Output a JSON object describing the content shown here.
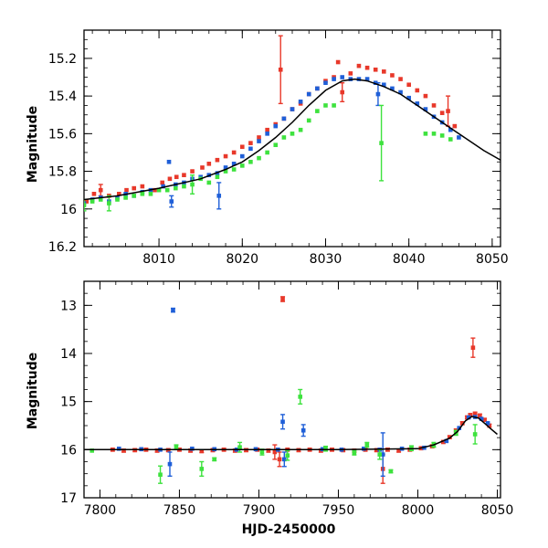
{
  "chart_data": [
    {
      "type": "scatter",
      "panel": "top",
      "ylabel": "Magnitude",
      "xlabel": "",
      "xlim": [
        8001,
        8051
      ],
      "ylim": [
        16.2,
        15.05
      ],
      "y_inverted": true,
      "x_ticks": [
        8010,
        8020,
        8030,
        8040,
        8050
      ],
      "x_tick_labels": [
        "8010",
        "8020",
        "8030",
        "8040",
        "8050"
      ],
      "y_ticks": [
        15.2,
        15.4,
        15.6,
        15.8,
        16.0,
        16.2
      ],
      "y_tick_labels": [
        "15.2",
        "15.4",
        "15.6",
        "15.8",
        "16",
        "16.2"
      ],
      "grid": false,
      "legend": "none",
      "model_curve": {
        "color": "#000000",
        "x": [
          8001,
          8005,
          8010,
          8015,
          8018,
          8020,
          8022,
          8024,
          8026,
          8028,
          8030,
          8032,
          8033.5,
          8035,
          8037,
          8039,
          8041,
          8043,
          8045,
          8047,
          8049,
          8051
        ],
        "y": [
          15.95,
          15.93,
          15.89,
          15.84,
          15.79,
          15.75,
          15.69,
          15.62,
          15.54,
          15.45,
          15.37,
          15.32,
          15.31,
          15.32,
          15.35,
          15.39,
          15.45,
          15.51,
          15.57,
          15.63,
          15.69,
          15.74
        ]
      },
      "series": [
        {
          "color": "#e8382a",
          "x": [
            8001.3,
            8002.2,
            8003,
            8004,
            8005.2,
            8006.1,
            8007,
            8008,
            8009.5,
            8010.4,
            8011.3,
            8012.1,
            8013,
            8014,
            8015.2,
            8016,
            8017,
            8018,
            8019,
            8020,
            8021,
            8022,
            8023,
            8024,
            8024.6,
            8025,
            8026,
            8027,
            8028,
            8029,
            8030,
            8031,
            8031.5,
            8032,
            8033,
            8034,
            8035,
            8036,
            8037,
            8038,
            8039,
            8040,
            8041,
            8042,
            8043,
            8044,
            8044.7,
            8045.5
          ],
          "y": [
            15.96,
            15.92,
            15.9,
            15.93,
            15.92,
            15.9,
            15.89,
            15.88,
            15.9,
            15.86,
            15.84,
            15.83,
            15.82,
            15.8,
            15.78,
            15.76,
            15.74,
            15.72,
            15.7,
            15.67,
            15.65,
            15.62,
            15.58,
            15.55,
            15.26,
            15.52,
            15.47,
            15.44,
            15.39,
            15.36,
            15.32,
            15.3,
            15.22,
            15.38,
            15.28,
            15.24,
            15.25,
            15.26,
            15.27,
            15.29,
            15.31,
            15.34,
            15.37,
            15.4,
            15.45,
            15.49,
            15.48,
            15.56
          ],
          "yerr": [
            0.02,
            0.02,
            0.03,
            0.02,
            0.02,
            0.02,
            0.02,
            0.02,
            0.02,
            0.02,
            0.02,
            0.02,
            0.02,
            0.02,
            0.02,
            0.02,
            0.02,
            0.02,
            0.02,
            0.02,
            0.02,
            0.02,
            0.02,
            0.02,
            0.18,
            0.02,
            0.02,
            0.02,
            0.02,
            0.02,
            0.02,
            0.02,
            0.02,
            0.05,
            0.02,
            0.02,
            0.02,
            0.02,
            0.02,
            0.02,
            0.02,
            0.02,
            0.02,
            0.02,
            0.02,
            0.02,
            0.08,
            0.02
          ]
        },
        {
          "color": "#1f5fd8",
          "x": [
            8001,
            8002,
            8003,
            8004,
            8005,
            8006,
            8007,
            8008,
            8009,
            8010.5,
            8011.2,
            8011.5,
            8012,
            8013,
            8014,
            8015,
            8016,
            8017,
            8017.2,
            8018,
            8019,
            8020,
            8021,
            8022,
            8023,
            8024,
            8025,
            8026,
            8027,
            8028,
            8029,
            8030,
            8031,
            8032,
            8033,
            8034,
            8035,
            8036,
            8036.3,
            8037,
            8038,
            8039,
            8040,
            8041,
            8042,
            8043,
            8044,
            8045,
            8046
          ],
          "y": [
            15.97,
            15.95,
            15.94,
            15.96,
            15.94,
            15.92,
            15.93,
            15.91,
            15.9,
            15.88,
            15.75,
            15.96,
            15.87,
            15.86,
            15.84,
            15.83,
            15.82,
            15.81,
            15.93,
            15.78,
            15.76,
            15.72,
            15.68,
            15.64,
            15.6,
            15.56,
            15.52,
            15.47,
            15.43,
            15.39,
            15.36,
            15.33,
            15.31,
            15.3,
            15.31,
            15.31,
            15.31,
            15.33,
            15.39,
            15.34,
            15.36,
            15.38,
            15.41,
            15.44,
            15.47,
            15.51,
            15.54,
            15.58,
            15.62
          ],
          "yerr": [
            0.02,
            0.02,
            0.02,
            0.02,
            0.02,
            0.02,
            0.02,
            0.02,
            0.02,
            0.02,
            0.02,
            0.03,
            0.02,
            0.02,
            0.02,
            0.02,
            0.02,
            0.02,
            0.07,
            0.02,
            0.02,
            0.02,
            0.02,
            0.02,
            0.02,
            0.02,
            0.02,
            0.02,
            0.02,
            0.02,
            0.02,
            0.02,
            0.02,
            0.02,
            0.02,
            0.02,
            0.02,
            0.02,
            0.06,
            0.02,
            0.02,
            0.02,
            0.02,
            0.02,
            0.02,
            0.02,
            0.02,
            0.02,
            0.02
          ]
        },
        {
          "color": "#3ee23e",
          "x": [
            8001,
            8002,
            8003,
            8004,
            8005,
            8006,
            8007,
            8008,
            8009,
            8010,
            8011,
            8012,
            8013,
            8014,
            8015,
            8016,
            8017,
            8018,
            8019,
            8020,
            8021,
            8022,
            8023,
            8024,
            8025,
            8026,
            8027,
            8028,
            8029,
            8030,
            8031,
            8036.7,
            8042,
            8043,
            8044,
            8045
          ],
          "y": [
            15.98,
            15.96,
            15.95,
            15.97,
            15.95,
            15.94,
            15.93,
            15.92,
            15.92,
            15.9,
            15.9,
            15.89,
            15.88,
            15.87,
            15.84,
            15.86,
            15.83,
            15.8,
            15.79,
            15.77,
            15.75,
            15.73,
            15.7,
            15.66,
            15.62,
            15.6,
            15.58,
            15.53,
            15.48,
            15.45,
            15.45,
            15.65,
            15.6,
            15.6,
            15.61,
            15.63
          ],
          "yerr": [
            0.03,
            0.02,
            0.02,
            0.04,
            0.02,
            0.02,
            0.02,
            0.02,
            0.02,
            0.02,
            0.02,
            0.02,
            0.02,
            0.05,
            0.02,
            0.02,
            0.02,
            0.02,
            0.02,
            0.02,
            0.02,
            0.02,
            0.02,
            0.02,
            0.02,
            0.02,
            0.02,
            0.02,
            0.02,
            0.02,
            0.02,
            0.2,
            0.02,
            0.02,
            0.02,
            0.02
          ]
        }
      ]
    },
    {
      "type": "scatter",
      "panel": "bottom",
      "ylabel": "Magnitude",
      "xlabel": "HJD-2450000",
      "xlim": [
        7790,
        8052
      ],
      "ylim": [
        17,
        12.5
      ],
      "y_inverted": true,
      "x_ticks": [
        7800,
        7850,
        7900,
        7950,
        8000,
        8050
      ],
      "x_tick_labels": [
        "7800",
        "7850",
        "7900",
        "7950",
        "8000",
        "8050"
      ],
      "y_ticks": [
        13,
        14,
        15,
        16,
        17
      ],
      "y_tick_labels": [
        "13",
        "14",
        "15",
        "16",
        "17"
      ],
      "grid": false,
      "legend": "none",
      "model_curve": {
        "color": "#000000",
        "x": [
          7790,
          7850,
          7900,
          7950,
          8000,
          8010,
          8020,
          8025,
          8030,
          8034,
          8038,
          8042,
          8046,
          8050
        ],
        "y": [
          16.0,
          16.0,
          16.0,
          16.0,
          15.98,
          15.9,
          15.76,
          15.62,
          15.4,
          15.31,
          15.34,
          15.45,
          15.57,
          15.68
        ]
      },
      "series": [
        {
          "color": "#e8382a",
          "x": [
            7808,
            7815,
            7822,
            7829,
            7836,
            7843,
            7850,
            7857,
            7864,
            7871,
            7878,
            7885,
            7892,
            7899,
            7906,
            7910,
            7913,
            7915,
            7918,
            7925,
            7932,
            7939,
            7946,
            7953,
            7960,
            7967,
            7974,
            7978,
            7981,
            7988,
            7995,
            8002,
            8009,
            8016,
            8020,
            8024,
            8028,
            8031,
            8033,
            8034.7,
            8036,
            8039,
            8042,
            8045
          ],
          "y": [
            16.0,
            16.02,
            16.01,
            16.0,
            16.02,
            16.01,
            16.0,
            16.02,
            16.03,
            16.01,
            16.0,
            16.02,
            16.01,
            16.0,
            16.02,
            16.05,
            16.2,
            12.87,
            16.0,
            16.01,
            16.0,
            16.02,
            16.0,
            16.01,
            16.02,
            16.0,
            16.01,
            16.4,
            16.0,
            16.02,
            16.0,
            15.97,
            15.93,
            15.84,
            15.74,
            15.6,
            15.45,
            15.33,
            15.28,
            13.88,
            15.25,
            15.29,
            15.38,
            15.5
          ],
          "yerr": [
            0.03,
            0.03,
            0.03,
            0.03,
            0.03,
            0.03,
            0.03,
            0.03,
            0.03,
            0.03,
            0.03,
            0.03,
            0.03,
            0.03,
            0.03,
            0.15,
            0.15,
            0.05,
            0.03,
            0.03,
            0.03,
            0.03,
            0.03,
            0.03,
            0.03,
            0.03,
            0.03,
            0.3,
            0.03,
            0.03,
            0.03,
            0.03,
            0.03,
            0.03,
            0.03,
            0.03,
            0.03,
            0.03,
            0.03,
            0.2,
            0.03,
            0.03,
            0.03,
            0.03
          ]
        },
        {
          "color": "#1f5fd8",
          "x": [
            7812,
            7826,
            7838,
            7844,
            7846,
            7858,
            7872,
            7886,
            7898,
            7912,
            7915,
            7916,
            7928,
            7940,
            7952,
            7966,
            7976,
            7978,
            7990,
            8004,
            8018,
            8026,
            8032,
            8036,
            8040,
            8044
          ],
          "y": [
            15.98,
            15.99,
            16.0,
            16.3,
            13.1,
            15.98,
            15.99,
            16.0,
            15.99,
            16.0,
            15.42,
            16.2,
            15.6,
            15.99,
            16.0,
            15.98,
            16.0,
            16.1,
            15.98,
            15.96,
            15.82,
            15.55,
            15.33,
            15.32,
            15.36,
            15.45
          ],
          "yerr": [
            0.02,
            0.02,
            0.02,
            0.25,
            0.04,
            0.02,
            0.02,
            0.02,
            0.02,
            0.02,
            0.15,
            0.15,
            0.12,
            0.02,
            0.02,
            0.02,
            0.02,
            0.45,
            0.02,
            0.02,
            0.02,
            0.02,
            0.02,
            0.02,
            0.02,
            0.02
          ]
        },
        {
          "color": "#3ee23e",
          "x": [
            7795,
            7838,
            7848,
            7864,
            7872,
            7888,
            7902,
            7918,
            7926,
            7942,
            7960,
            7968,
            7976,
            7983,
            7996,
            8010,
            8024,
            8036
          ],
          "y": [
            16.02,
            16.52,
            15.95,
            16.4,
            16.2,
            15.95,
            16.05,
            16.12,
            14.9,
            15.98,
            16.06,
            15.9,
            16.1,
            16.45,
            15.97,
            15.9,
            15.65,
            15.68
          ],
          "yerr": [
            0.02,
            0.18,
            0.05,
            0.15,
            0.03,
            0.1,
            0.06,
            0.1,
            0.15,
            0.05,
            0.05,
            0.05,
            0.1,
            0.03,
            0.05,
            0.05,
            0.05,
            0.2
          ]
        }
      ]
    }
  ]
}
